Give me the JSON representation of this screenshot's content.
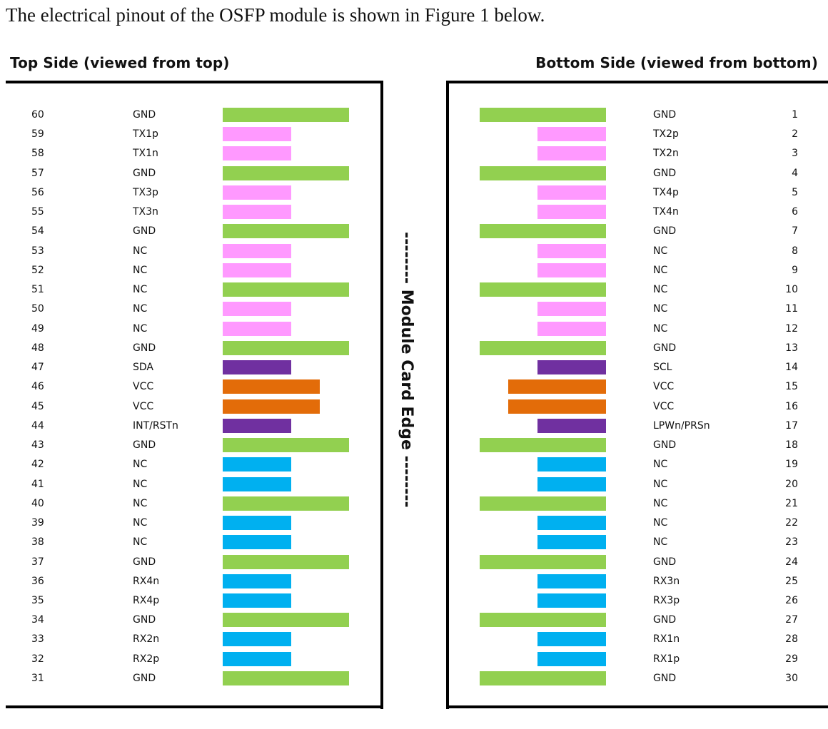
{
  "intro_text": "The electrical pinout of the OSFP module is shown in Figure 1 below.",
  "top_side": {
    "title": "Top Side (viewed from top)",
    "pins": [
      {
        "num": "60",
        "name": "GND",
        "type": "gnd"
      },
      {
        "num": "59",
        "name": "TX1p",
        "type": "tx"
      },
      {
        "num": "58",
        "name": "TX1n",
        "type": "tx"
      },
      {
        "num": "57",
        "name": "GND",
        "type": "gnd"
      },
      {
        "num": "56",
        "name": "TX3p",
        "type": "tx"
      },
      {
        "num": "55",
        "name": "TX3n",
        "type": "tx"
      },
      {
        "num": "54",
        "name": "GND",
        "type": "gnd"
      },
      {
        "num": "53",
        "name": "NC",
        "type": "tx"
      },
      {
        "num": "52",
        "name": "NC",
        "type": "tx"
      },
      {
        "num": "51",
        "name": "NC",
        "type": "gnd"
      },
      {
        "num": "50",
        "name": "NC",
        "type": "tx"
      },
      {
        "num": "49",
        "name": "NC",
        "type": "tx"
      },
      {
        "num": "48",
        "name": "GND",
        "type": "gnd"
      },
      {
        "num": "47",
        "name": "SDA",
        "type": "ctrl"
      },
      {
        "num": "46",
        "name": "VCC",
        "type": "vcc"
      },
      {
        "num": "45",
        "name": "VCC",
        "type": "vcc"
      },
      {
        "num": "44",
        "name": "INT/RSTn",
        "type": "ctrl"
      },
      {
        "num": "43",
        "name": "GND",
        "type": "gnd"
      },
      {
        "num": "42",
        "name": "NC",
        "type": "rx"
      },
      {
        "num": "41",
        "name": "NC",
        "type": "rx"
      },
      {
        "num": "40",
        "name": "NC",
        "type": "gnd"
      },
      {
        "num": "39",
        "name": "NC",
        "type": "rx"
      },
      {
        "num": "38",
        "name": "NC",
        "type": "rx"
      },
      {
        "num": "37",
        "name": "GND",
        "type": "gnd"
      },
      {
        "num": "36",
        "name": "RX4n",
        "type": "rx"
      },
      {
        "num": "35",
        "name": "RX4p",
        "type": "rx"
      },
      {
        "num": "34",
        "name": "GND",
        "type": "gnd"
      },
      {
        "num": "33",
        "name": "RX2n",
        "type": "rx"
      },
      {
        "num": "32",
        "name": "RX2p",
        "type": "rx"
      },
      {
        "num": "31",
        "name": "GND",
        "type": "gnd"
      }
    ]
  },
  "bottom_side": {
    "title": "Bottom Side (viewed from bottom)",
    "pins": [
      {
        "num": "1",
        "name": "GND",
        "type": "gnd"
      },
      {
        "num": "2",
        "name": "TX2p",
        "type": "tx"
      },
      {
        "num": "3",
        "name": "TX2n",
        "type": "tx"
      },
      {
        "num": "4",
        "name": "GND",
        "type": "gnd"
      },
      {
        "num": "5",
        "name": "TX4p",
        "type": "tx"
      },
      {
        "num": "6",
        "name": "TX4n",
        "type": "tx"
      },
      {
        "num": "7",
        "name": "GND",
        "type": "gnd"
      },
      {
        "num": "8",
        "name": "NC",
        "type": "tx"
      },
      {
        "num": "9",
        "name": "NC",
        "type": "tx"
      },
      {
        "num": "10",
        "name": "NC",
        "type": "gnd"
      },
      {
        "num": "11",
        "name": "NC",
        "type": "tx"
      },
      {
        "num": "12",
        "name": "NC",
        "type": "tx"
      },
      {
        "num": "13",
        "name": "GND",
        "type": "gnd"
      },
      {
        "num": "14",
        "name": "SCL",
        "type": "ctrl"
      },
      {
        "num": "15",
        "name": "VCC",
        "type": "vcc"
      },
      {
        "num": "16",
        "name": "VCC",
        "type": "vcc"
      },
      {
        "num": "17",
        "name": "LPWn/PRSn",
        "type": "ctrl"
      },
      {
        "num": "18",
        "name": "GND",
        "type": "gnd"
      },
      {
        "num": "19",
        "name": "NC",
        "type": "rx"
      },
      {
        "num": "20",
        "name": "NC",
        "type": "rx"
      },
      {
        "num": "21",
        "name": "NC",
        "type": "gnd"
      },
      {
        "num": "22",
        "name": "NC",
        "type": "rx"
      },
      {
        "num": "23",
        "name": "NC",
        "type": "rx"
      },
      {
        "num": "24",
        "name": "GND",
        "type": "gnd"
      },
      {
        "num": "25",
        "name": "RX3n",
        "type": "rx"
      },
      {
        "num": "26",
        "name": "RX3p",
        "type": "rx"
      },
      {
        "num": "27",
        "name": "GND",
        "type": "gnd"
      },
      {
        "num": "28",
        "name": "RX1n",
        "type": "rx"
      },
      {
        "num": "29",
        "name": "RX1p",
        "type": "rx"
      },
      {
        "num": "30",
        "name": "GND",
        "type": "gnd"
      }
    ]
  },
  "edge_label": "-------- Module Card Edge --------",
  "pin_colors": {
    "gnd": "#92d050",
    "tx": "#ff99ff",
    "rx": "#00b0f0",
    "vcc": "#e36c09",
    "ctrl": "#7030a0"
  }
}
